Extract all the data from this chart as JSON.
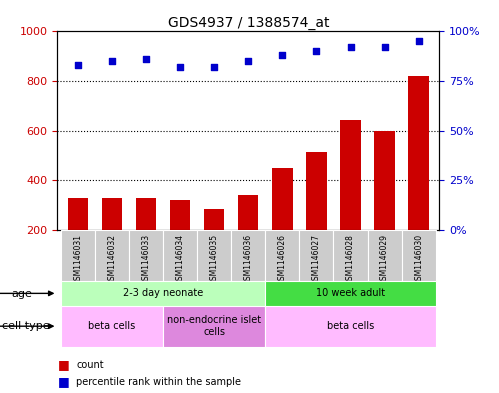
{
  "title": "GDS4937 / 1388574_at",
  "samples": [
    "GSM1146031",
    "GSM1146032",
    "GSM1146033",
    "GSM1146034",
    "GSM1146035",
    "GSM1146036",
    "GSM1146026",
    "GSM1146027",
    "GSM1146028",
    "GSM1146029",
    "GSM1146030"
  ],
  "counts": [
    330,
    330,
    330,
    320,
    285,
    340,
    450,
    515,
    645,
    600,
    820
  ],
  "percentiles": [
    83,
    85,
    86,
    82,
    82,
    85,
    88,
    90,
    92,
    92,
    95
  ],
  "ylim_left": [
    200,
    1000
  ],
  "ylim_right": [
    0,
    100
  ],
  "bar_color": "#cc0000",
  "dot_color": "#0000cc",
  "age_groups": [
    {
      "label": "2-3 day neonate",
      "start": 0,
      "end": 6,
      "color": "#bbffbb"
    },
    {
      "label": "10 week adult",
      "start": 6,
      "end": 11,
      "color": "#44dd44"
    }
  ],
  "cell_type_groups": [
    {
      "label": "beta cells",
      "start": 0,
      "end": 3,
      "color": "#ffbbff"
    },
    {
      "label": "non-endocrine islet\ncells",
      "start": 3,
      "end": 6,
      "color": "#dd88dd"
    },
    {
      "label": "beta cells",
      "start": 6,
      "end": 11,
      "color": "#ffbbff"
    }
  ],
  "tick_color_left": "#cc0000",
  "tick_color_right": "#0000cc",
  "left_yticks": [
    200,
    400,
    600,
    800,
    1000
  ],
  "right_yticks": [
    0,
    25,
    50,
    75,
    100
  ],
  "dotted_lines": [
    400,
    600,
    800
  ],
  "sample_bg_color": "#cccccc",
  "label_fontsize": 7,
  "sample_fontsize": 5.5,
  "title_fontsize": 10
}
